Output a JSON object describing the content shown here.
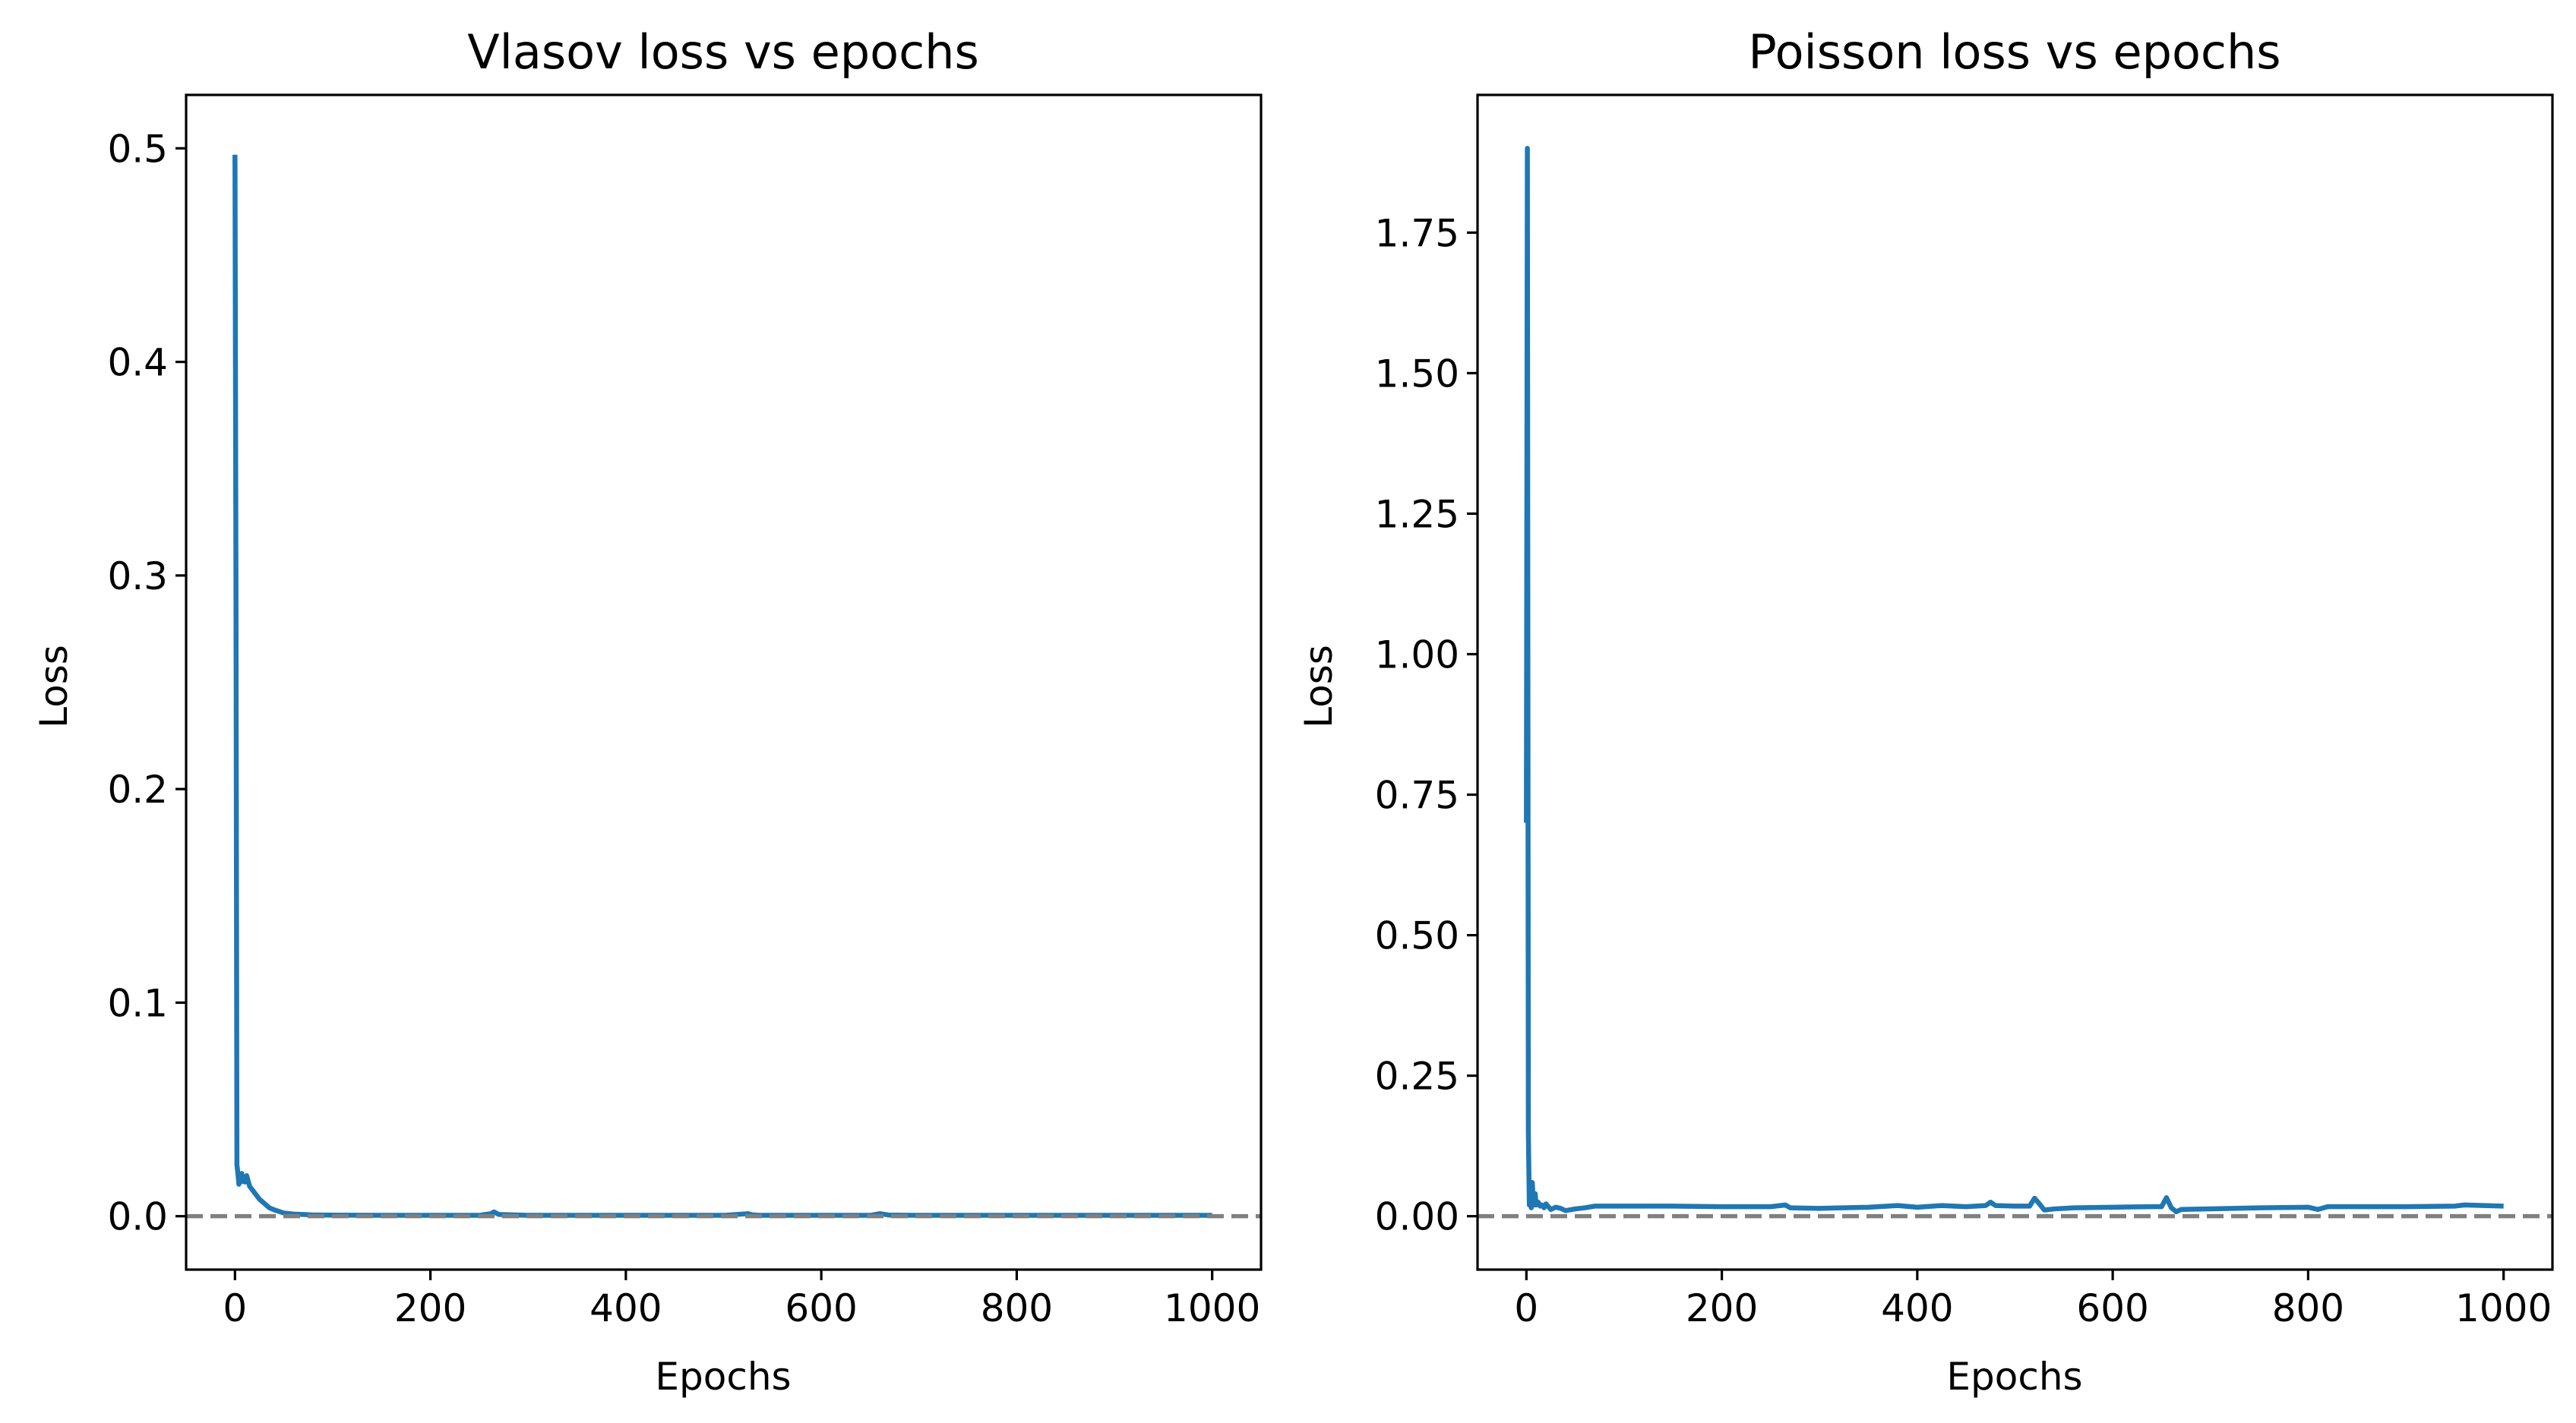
{
  "colors": {
    "series": "#1f77b4",
    "reference_line": "#808080",
    "axes": "#000000",
    "background": "#ffffff"
  },
  "chart_data": [
    {
      "type": "line",
      "title": "Vlasov loss vs epochs",
      "xlabel": "Epochs",
      "ylabel": "Loss",
      "xlim": [
        -50,
        1050
      ],
      "ylim": [
        -0.025,
        0.525
      ],
      "xticks": [
        0,
        200,
        400,
        600,
        800,
        1000
      ],
      "xtick_labels": [
        "0",
        "200",
        "400",
        "600",
        "800",
        "1000"
      ],
      "yticks": [
        0.0,
        0.1,
        0.2,
        0.3,
        0.4,
        0.5
      ],
      "ytick_labels": [
        "0.0",
        "0.1",
        "0.2",
        "0.3",
        "0.4",
        "0.5"
      ],
      "grid": false,
      "reference_line": {
        "y": 0.0,
        "style": "dashed",
        "color": "#808080"
      },
      "series": [
        {
          "color": "#1f77b4",
          "x": [
            0,
            1,
            2,
            3,
            4,
            5,
            6,
            7,
            8,
            10,
            12,
            15,
            20,
            25,
            30,
            35,
            40,
            50,
            60,
            80,
            100,
            150,
            200,
            250,
            262,
            265,
            270,
            300,
            400,
            500,
            525,
            530,
            540,
            600,
            650,
            660,
            670,
            700,
            800,
            900,
            1000
          ],
          "y": [
            0.497,
            0.3,
            0.024,
            0.02,
            0.015,
            0.019,
            0.016,
            0.02,
            0.017,
            0.016,
            0.019,
            0.014,
            0.011,
            0.008,
            0.006,
            0.004,
            0.003,
            0.0015,
            0.001,
            0.0006,
            0.0005,
            0.0004,
            0.0004,
            0.0004,
            0.0012,
            0.002,
            0.0008,
            0.0004,
            0.0004,
            0.0004,
            0.0012,
            0.0006,
            0.0004,
            0.0004,
            0.0004,
            0.0012,
            0.0005,
            0.0004,
            0.0004,
            0.0004,
            0.0004
          ]
        }
      ]
    },
    {
      "type": "line",
      "title": "Poisson loss vs epochs",
      "xlabel": "Epochs",
      "ylabel": "Loss",
      "xlim": [
        -50,
        1050
      ],
      "ylim": [
        -0.095,
        1.995
      ],
      "xticks": [
        0,
        200,
        400,
        600,
        800,
        1000
      ],
      "xtick_labels": [
        "0",
        "200",
        "400",
        "600",
        "800",
        "1000"
      ],
      "yticks": [
        0.0,
        0.25,
        0.5,
        0.75,
        1.0,
        1.25,
        1.5,
        1.75
      ],
      "ytick_labels": [
        "0.00",
        "0.25",
        "0.50",
        "0.75",
        "1.00",
        "1.25",
        "1.50",
        "1.75"
      ],
      "grid": false,
      "reference_line": {
        "y": 0.0,
        "style": "dashed",
        "color": "#808080"
      },
      "series": [
        {
          "color": "#1f77b4",
          "x": [
            0,
            1,
            2,
            3,
            4,
            5,
            6,
            7,
            8,
            9,
            10,
            12,
            14,
            16,
            18,
            20,
            25,
            30,
            35,
            40,
            50,
            60,
            70,
            100,
            150,
            200,
            250,
            265,
            270,
            300,
            350,
            380,
            400,
            425,
            450,
            470,
            475,
            480,
            500,
            515,
            520,
            525,
            530,
            540,
            560,
            600,
            640,
            650,
            655,
            660,
            665,
            670,
            700,
            750,
            800,
            810,
            820,
            850,
            900,
            950,
            960,
            1000
          ],
          "y": [
            0.7,
            1.9,
            0.15,
            0.02,
            0.06,
            0.015,
            0.06,
            0.03,
            0.02,
            0.04,
            0.02,
            0.025,
            0.018,
            0.02,
            0.015,
            0.022,
            0.012,
            0.016,
            0.014,
            0.01,
            0.013,
            0.015,
            0.018,
            0.018,
            0.018,
            0.017,
            0.017,
            0.02,
            0.015,
            0.014,
            0.016,
            0.019,
            0.016,
            0.019,
            0.017,
            0.019,
            0.025,
            0.019,
            0.018,
            0.018,
            0.032,
            0.022,
            0.011,
            0.013,
            0.015,
            0.016,
            0.017,
            0.017,
            0.033,
            0.015,
            0.008,
            0.012,
            0.013,
            0.015,
            0.016,
            0.012,
            0.017,
            0.017,
            0.017,
            0.018,
            0.02,
            0.018
          ]
        }
      ]
    }
  ]
}
